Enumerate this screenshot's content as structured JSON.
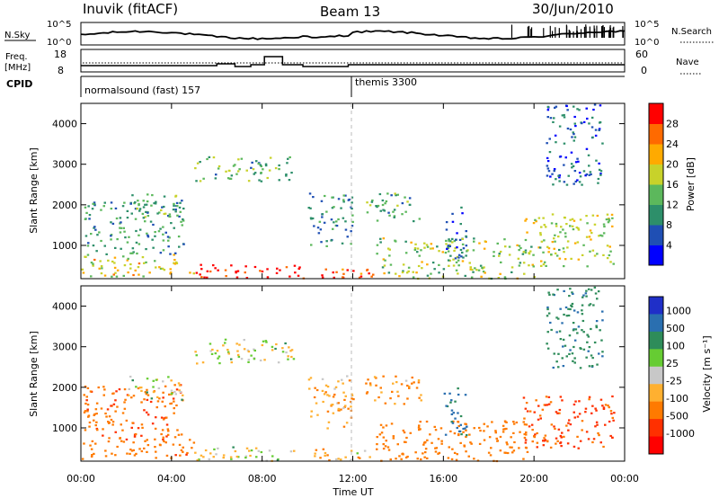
{
  "header": {
    "station": "Inuvik (fitACF)",
    "beam": "Beam 13",
    "date": "30/Jun/2010"
  },
  "summary": {
    "nsky_label": "N.Sky",
    "nsky_ticks": [
      "10^5",
      "10^0"
    ],
    "nsearch_label": "N.Search",
    "nsearch_ticks": [
      "10^5",
      "10^0"
    ],
    "freq_label_line1": "Freq.",
    "freq_label_line2": "[MHz]",
    "freq_ticks": [
      "18",
      "8"
    ],
    "nave_label": "Nave",
    "nave_ticks": [
      "60",
      "0"
    ],
    "cpid_label": "CPID",
    "programs": [
      {
        "name": "normalsound (fast) 157",
        "start_hour": 0.0
      },
      {
        "name": "themis 3300",
        "start_hour": 12.0
      }
    ]
  },
  "axes": {
    "xlabel": "Time UT",
    "xticks": [
      "00:00",
      "04:00",
      "08:00",
      "12:00",
      "16:00",
      "20:00",
      "00:00"
    ],
    "ylabel": "Slant Range [km]",
    "yticks": [
      "1000",
      "2000",
      "3000",
      "4000"
    ]
  },
  "colorbars": {
    "power": {
      "label": "Power [dB]",
      "ticks": [
        "4",
        "8",
        "12",
        "16",
        "20",
        "24",
        "28"
      ],
      "colors": [
        "#0000ff",
        "#1f4fb4",
        "#2d8f6a",
        "#5cb85c",
        "#c8d22a",
        "#ffaa00",
        "#ff6a00",
        "#ff0000"
      ]
    },
    "velocity": {
      "label": "Velocity [m s⁻¹]",
      "ticks": [
        "1000",
        "500",
        "100",
        "25",
        "-25",
        "-100",
        "-500",
        "-1000"
      ],
      "colors": [
        "#1f2fc8",
        "#2a6fb0",
        "#2e8c5a",
        "#66cc33",
        "#c8c8c8",
        "#ffb030",
        "#ff7a00",
        "#ff3000",
        "#ff0000"
      ]
    }
  },
  "chart_data": {
    "type": "heatmap",
    "title": "Inuvik (fitACF)",
    "subtitle": "Beam 13",
    "xlabel": "Time UT",
    "ylabel": "Slant Range [km]",
    "xlim": [
      0,
      24
    ],
    "ylim": [
      180,
      4500
    ],
    "power_scale": [
      0,
      30
    ],
    "velocity_scale": [
      -1000,
      1000
    ],
    "frequency_mhz": [
      [
        0.0,
        11.5
      ],
      [
        5.5,
        11.5
      ],
      [
        6.0,
        12.5
      ],
      [
        6.8,
        11.0
      ],
      [
        7.5,
        12.0
      ],
      [
        8.1,
        16.5
      ],
      [
        8.9,
        12.0
      ],
      [
        9.8,
        11.0
      ],
      [
        11.8,
        12.0
      ],
      [
        24.0,
        12.0
      ]
    ],
    "echo_regions": [
      {
        "t": [
          0.0,
          5.0
        ],
        "r": [
          250,
          800
        ],
        "power": 18,
        "velocity": -350
      },
      {
        "t": [
          5.0,
          10.0
        ],
        "r": [
          200,
          550
        ],
        "power": 29,
        "velocity": 10
      },
      {
        "t": [
          10.0,
          13.0
        ],
        "r": [
          200,
          500
        ],
        "power": 26,
        "velocity": -50
      },
      {
        "t": [
          0.0,
          4.5
        ],
        "r": [
          800,
          2100
        ],
        "power": 10,
        "velocity": -400
      },
      {
        "t": [
          2.0,
          4.5
        ],
        "r": [
          1700,
          2300
        ],
        "power": 12,
        "velocity": 10
      },
      {
        "t": [
          5.0,
          9.5
        ],
        "r": [
          2600,
          3200
        ],
        "power": 12,
        "velocity": 15
      },
      {
        "t": [
          10.0,
          12.0
        ],
        "r": [
          1000,
          2300
        ],
        "power": 9,
        "velocity": -80
      },
      {
        "t": [
          12.5,
          15.0
        ],
        "r": [
          1600,
          2300
        ],
        "power": 12,
        "velocity": -120
      },
      {
        "t": [
          13.0,
          20.0
        ],
        "r": [
          200,
          1200
        ],
        "power": 15,
        "velocity": -200
      },
      {
        "t": [
          16.0,
          17.0
        ],
        "r": [
          700,
          2000
        ],
        "power": 8,
        "velocity": 600
      },
      {
        "t": [
          19.5,
          23.5
        ],
        "r": [
          500,
          1800
        ],
        "power": 16,
        "velocity": -600
      },
      {
        "t": [
          20.5,
          23.0
        ],
        "r": [
          2500,
          4500
        ],
        "power": 6,
        "velocity": 400
      }
    ]
  }
}
